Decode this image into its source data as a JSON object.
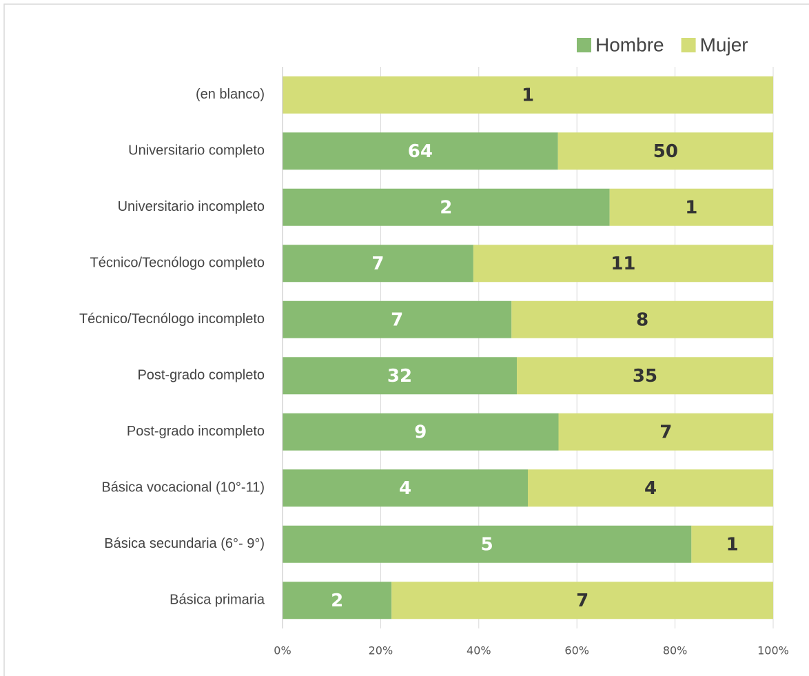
{
  "chart_data": {
    "type": "bar",
    "orientation": "horizontal",
    "stacking": "percent",
    "categories": [
      "(en blanco)",
      "Universitario completo",
      "Universitario incompleto",
      "Técnico/Tecnólogo completo",
      "Técnico/Tecnólogo incompleto",
      "Post-grado completo",
      "Post-grado incompleto",
      "Básica vocacional (10°-11)",
      "Básica secundaria (6°- 9°)",
      "Básica primaria"
    ],
    "series": [
      {
        "name": "Hombre",
        "color": "#88bb72",
        "label_color": "#ffffff",
        "values": [
          null,
          64,
          2,
          7,
          7,
          32,
          9,
          4,
          5,
          2
        ]
      },
      {
        "name": "Mujer",
        "color": "#d4dd78",
        "label_color": "#333333",
        "values": [
          1,
          50,
          1,
          11,
          8,
          35,
          7,
          4,
          1,
          7
        ]
      }
    ],
    "xlim": [
      0,
      100
    ],
    "xticks": [
      {
        "value": 0,
        "label": "0%"
      },
      {
        "value": 20,
        "label": "20%"
      },
      {
        "value": 40,
        "label": "40%"
      },
      {
        "value": 60,
        "label": "60%"
      },
      {
        "value": 80,
        "label": "80%"
      },
      {
        "value": 100,
        "label": "100%"
      }
    ],
    "grid": true,
    "legend": "top-right"
  }
}
